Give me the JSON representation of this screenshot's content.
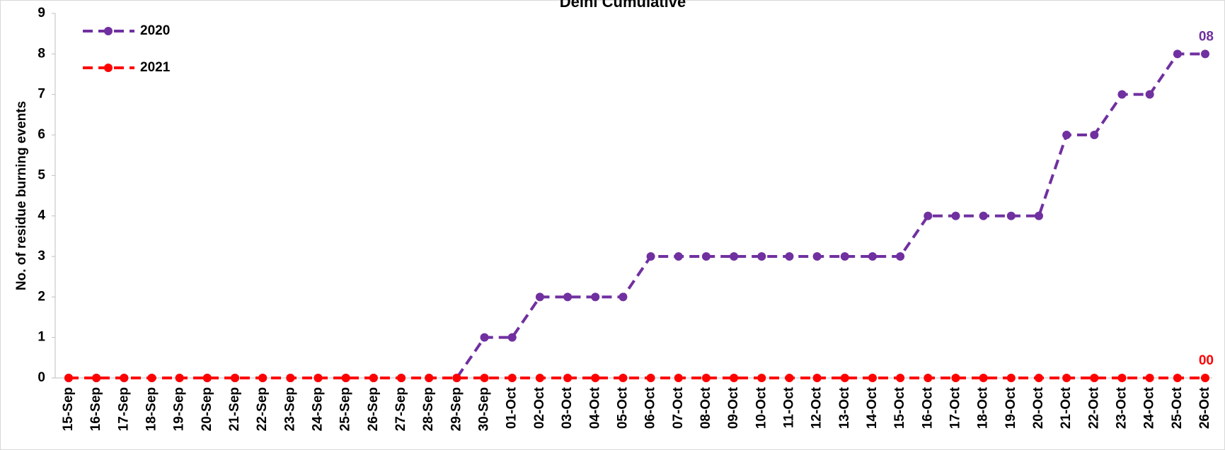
{
  "chart_data": {
    "type": "line",
    "title": "Delhi Cumulative",
    "ylabel": "No. of residue burning events",
    "categories": [
      "15-Sep",
      "16-Sep",
      "17-Sep",
      "18-Sep",
      "19-Sep",
      "20-Sep",
      "21-Sep",
      "22-Sep",
      "23-Sep",
      "24-Sep",
      "25-Sep",
      "26-Sep",
      "27-Sep",
      "28-Sep",
      "29-Sep",
      "30-Sep",
      "01-Oct",
      "02-Oct",
      "03-Oct",
      "04-Oct",
      "05-Oct",
      "06-Oct",
      "07-Oct",
      "08-Oct",
      "09-Oct",
      "10-Oct",
      "11-Oct",
      "12-Oct",
      "13-Oct",
      "14-Oct",
      "15-Oct",
      "16-Oct",
      "17-Oct",
      "18-Oct",
      "19-Oct",
      "20-Oct",
      "21-Oct",
      "22-Oct",
      "23-Oct",
      "24-Oct",
      "25-Oct",
      "26-Oct"
    ],
    "series": [
      {
        "name": "2020",
        "color": "#7030a0",
        "values": [
          0,
          0,
          0,
          0,
          0,
          0,
          0,
          0,
          0,
          0,
          0,
          0,
          0,
          0,
          0,
          1,
          1,
          2,
          2,
          2,
          2,
          3,
          3,
          3,
          3,
          3,
          3,
          3,
          3,
          3,
          3,
          4,
          4,
          4,
          4,
          4,
          6,
          6,
          7,
          7,
          8,
          8
        ],
        "value_labels": [
          null,
          null,
          null,
          null,
          null,
          null,
          null,
          null,
          null,
          null,
          null,
          null,
          null,
          null,
          null,
          null,
          null,
          null,
          null,
          null,
          null,
          null,
          null,
          null,
          null,
          null,
          null,
          null,
          null,
          null,
          null,
          null,
          null,
          null,
          null,
          null,
          null,
          null,
          null,
          null,
          null,
          "08"
        ]
      },
      {
        "name": "2021",
        "color": "#ff0000",
        "values": [
          0,
          0,
          0,
          0,
          0,
          0,
          0,
          0,
          0,
          0,
          0,
          0,
          0,
          0,
          0,
          0,
          0,
          0,
          0,
          0,
          0,
          0,
          0,
          0,
          0,
          0,
          0,
          0,
          0,
          0,
          0,
          0,
          0,
          0,
          0,
          0,
          0,
          0,
          0,
          0,
          0,
          0
        ],
        "value_labels": [
          null,
          null,
          null,
          null,
          null,
          null,
          null,
          null,
          null,
          null,
          null,
          null,
          null,
          null,
          null,
          null,
          null,
          null,
          null,
          null,
          null,
          null,
          null,
          null,
          null,
          null,
          null,
          null,
          null,
          null,
          null,
          null,
          null,
          null,
          null,
          null,
          null,
          null,
          null,
          null,
          null,
          "00"
        ]
      }
    ],
    "ylim": [
      0,
      9
    ],
    "yticks": [
      0,
      1,
      2,
      3,
      4,
      5,
      6,
      7,
      8,
      9
    ],
    "grid": false,
    "legend": "upper left"
  }
}
